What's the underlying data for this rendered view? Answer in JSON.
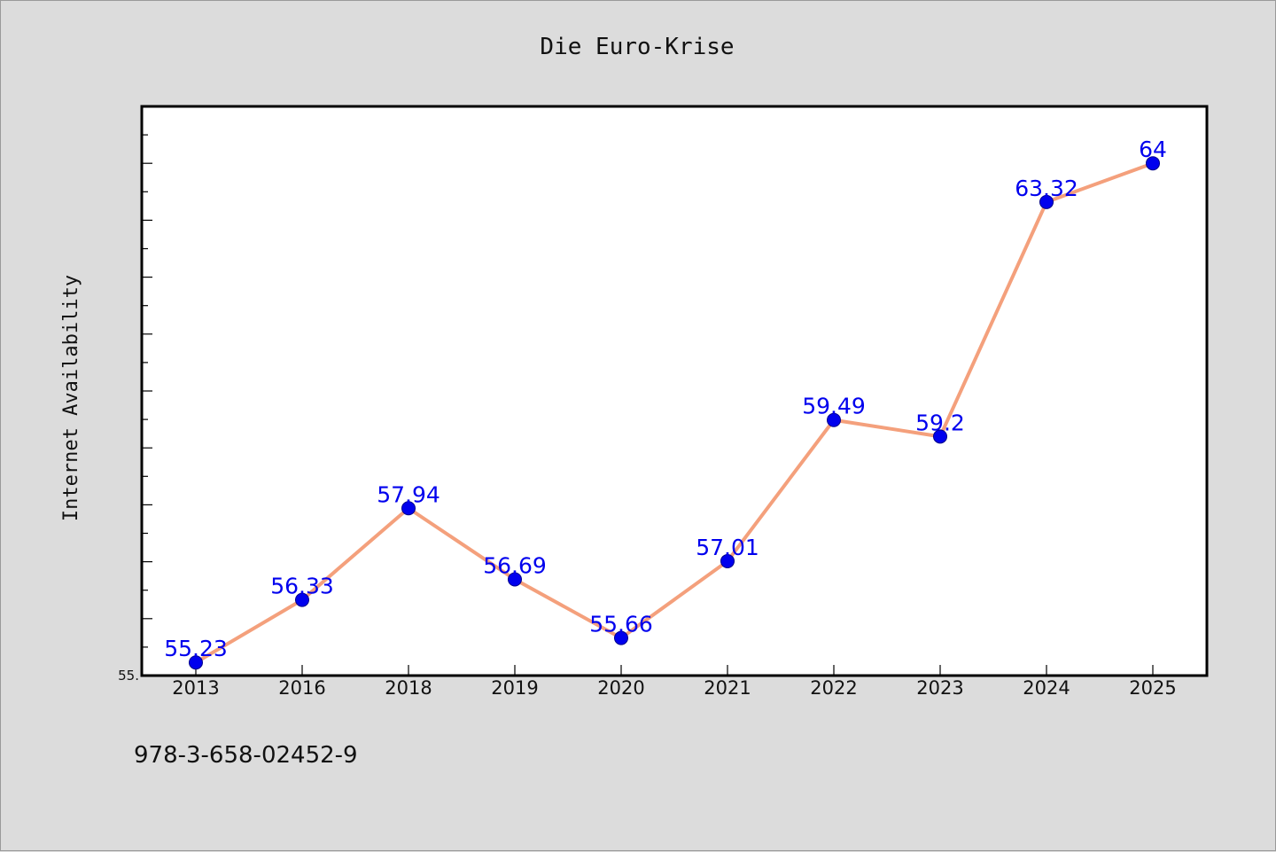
{
  "chart_data": {
    "type": "line",
    "title": "Die Euro-Krise",
    "xlabel": "",
    "ylabel": "Internet Availability",
    "categories": [
      "2013",
      "2016",
      "2018",
      "2019",
      "2020",
      "2021",
      "2022",
      "2023",
      "2024",
      "2025"
    ],
    "series": [
      {
        "values": [
          55.23,
          56.33,
          57.94,
          56.69,
          55.66,
          57.01,
          59.49,
          59.2,
          63.32,
          64
        ],
        "data_labels": [
          "55.23",
          "56.33",
          "57.94",
          "56.69",
          "55.66",
          "57.01",
          "59.49",
          "59.2",
          "63.32",
          "64"
        ]
      }
    ],
    "ylim": [
      55,
      65
    ],
    "y_tick_label": "55.",
    "grid": false,
    "colors": {
      "line": "#f4a07c",
      "marker": "#0000ee",
      "label": "#0000ee",
      "plot_bg": "#ffffff",
      "page_bg": "#dcdcdc"
    }
  },
  "footer": {
    "text": "978-3-658-02452-9"
  }
}
